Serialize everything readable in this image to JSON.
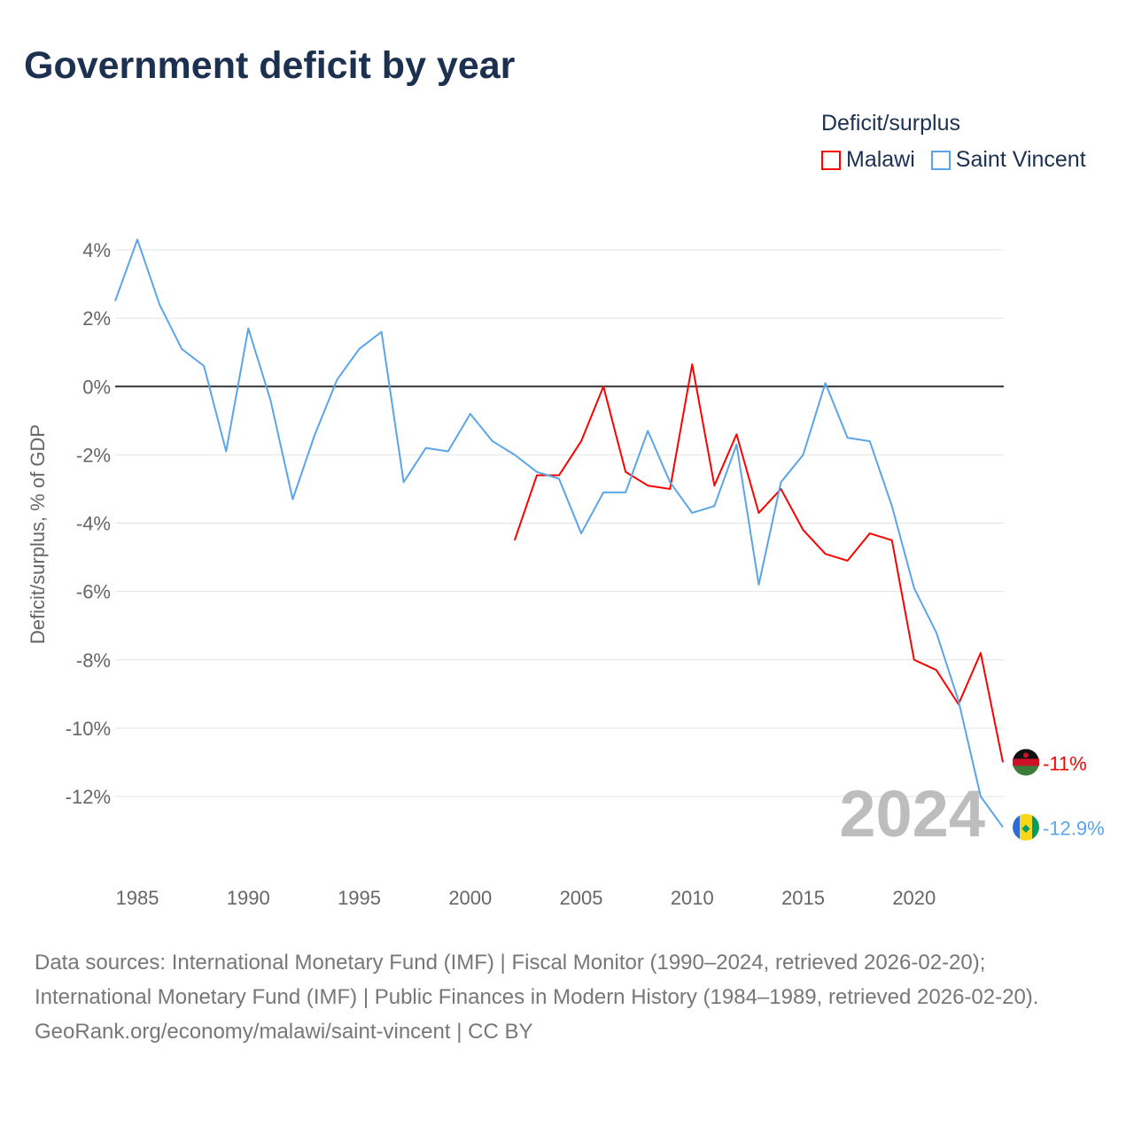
{
  "title": "Government deficit by year",
  "legend_title": "Deficit/surplus",
  "chart_data": {
    "type": "line",
    "title": "Government deficit by year",
    "ylabel": "Deficit/surplus, % of GDP",
    "xlabel": "",
    "xlim": [
      1984,
      2024
    ],
    "ylim": [
      -13.5,
      4.5
    ],
    "x_ticks": [
      1985,
      1990,
      1995,
      2000,
      2005,
      2010,
      2015,
      2020
    ],
    "y_ticks": [
      4,
      2,
      0,
      -2,
      -4,
      -6,
      -8,
      -10,
      -12
    ],
    "y_tick_labels": [
      "4%",
      "2%",
      "0%",
      "-2%",
      "-4%",
      "-6%",
      "-8%",
      "-10%",
      "-12%"
    ],
    "grid": true,
    "legend_position": "top-right",
    "year_watermark": "2024",
    "series": [
      {
        "name": "Malawi",
        "color": "#ff0000",
        "end_label": "-11%",
        "x": [
          2002,
          2003,
          2004,
          2005,
          2006,
          2007,
          2008,
          2009,
          2010,
          2011,
          2012,
          2013,
          2014,
          2015,
          2016,
          2017,
          2018,
          2019,
          2020,
          2021,
          2022,
          2023,
          2024
        ],
        "values": [
          -4.5,
          -2.6,
          -2.6,
          -1.6,
          0.0,
          -2.5,
          -2.9,
          -3.0,
          0.65,
          -2.9,
          -1.4,
          -3.7,
          -3.0,
          -4.2,
          -4.9,
          -5.1,
          -4.3,
          -4.5,
          -8.0,
          -8.3,
          -9.3,
          -7.8,
          -11.0
        ]
      },
      {
        "name": "Saint Vincent",
        "color": "#5aa5ea",
        "end_label": "-12.9%",
        "x": [
          1984,
          1985,
          1986,
          1987,
          1988,
          1989,
          1990,
          1991,
          1992,
          1993,
          1994,
          1995,
          1996,
          1997,
          1998,
          1999,
          2000,
          2001,
          2002,
          2003,
          2004,
          2005,
          2006,
          2007,
          2008,
          2009,
          2010,
          2011,
          2012,
          2013,
          2014,
          2015,
          2016,
          2017,
          2018,
          2019,
          2020,
          2021,
          2022,
          2023,
          2024
        ],
        "values": [
          2.5,
          4.3,
          2.4,
          1.1,
          0.6,
          -1.9,
          1.7,
          -0.4,
          -3.3,
          -1.4,
          0.2,
          1.1,
          1.6,
          -2.8,
          -1.8,
          -1.9,
          -0.8,
          -1.6,
          -2.0,
          -2.5,
          -2.7,
          -4.3,
          -3.1,
          -3.1,
          -1.3,
          -2.8,
          -3.7,
          -3.5,
          -1.7,
          -5.8,
          -2.8,
          -2.0,
          0.1,
          -1.5,
          -1.6,
          -3.5,
          -5.9,
          -7.2,
          -9.2,
          -12.0,
          -12.9
        ]
      }
    ]
  },
  "footer": {
    "sources": "Data sources: International Monetary Fund (IMF) | Fiscal Monitor (1990–2024, retrieved 2026-02-20); International Monetary Fund (IMF) | Public Finances in Modern History (1984–1989, retrieved 2026-02-20).",
    "credit": "GeoRank.org/economy/malawi/saint-vincent | CC BY"
  }
}
